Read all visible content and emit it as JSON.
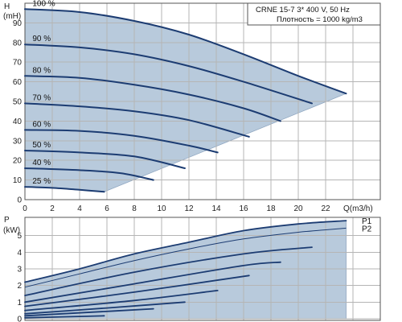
{
  "chart_data": [
    {
      "type": "line",
      "ylabel_unit": "(mH)",
      "ylabel_symbol": "H",
      "xlabel": "Q(m3/h)",
      "xlim": [
        0,
        26
      ],
      "ylim": [
        0,
        100
      ],
      "x_ticks": [
        0,
        2,
        4,
        6,
        8,
        10,
        12,
        14,
        16,
        18,
        20,
        22
      ],
      "y_ticks": [
        0,
        10,
        20,
        30,
        40,
        50,
        60,
        70,
        80,
        90
      ],
      "info_line1": "CRNE 15-7    3* 400 V, 50 Hz",
      "info_line2": "Плотность = 1000 kg/m3",
      "series": [
        {
          "name": "100 %",
          "x": [
            0,
            4,
            8,
            12,
            16,
            20,
            23.5
          ],
          "y": [
            97,
            95.5,
            91,
            84,
            74,
            63,
            54
          ]
        },
        {
          "name": "90 %",
          "x": [
            0,
            4,
            8,
            12,
            16,
            21
          ],
          "y": [
            79,
            77.5,
            74,
            68,
            60,
            49
          ]
        },
        {
          "name": "80 %",
          "x": [
            0,
            4,
            8,
            12,
            16,
            18.7
          ],
          "y": [
            63,
            62,
            58.5,
            53.5,
            46.5,
            40
          ]
        },
        {
          "name": "70 %",
          "x": [
            0,
            4,
            8,
            12,
            16.4
          ],
          "y": [
            49,
            47.5,
            45,
            40.5,
            32
          ]
        },
        {
          "name": "60 %",
          "x": [
            0,
            4,
            8,
            12,
            14.1
          ],
          "y": [
            35.5,
            35,
            32.5,
            27.5,
            24
          ]
        },
        {
          "name": "50 %",
          "x": [
            0,
            4,
            8,
            11.7
          ],
          "y": [
            25,
            24,
            22,
            16
          ]
        },
        {
          "name": "40 %",
          "x": [
            0,
            4,
            7,
            9.4
          ],
          "y": [
            16,
            15,
            13.5,
            10
          ]
        },
        {
          "name": "25 %",
          "x": [
            0,
            2,
            4,
            5.8
          ],
          "y": [
            6.5,
            6,
            5,
            4
          ]
        }
      ]
    },
    {
      "type": "line",
      "ylabel_unit": "(kW)",
      "ylabel_symbol": "P",
      "xlim": [
        0,
        26
      ],
      "ylim": [
        0,
        6
      ],
      "y_ticks": [
        0,
        1,
        2,
        3,
        4,
        5
      ],
      "series": [
        {
          "name": "P1",
          "x": [
            0,
            4,
            8,
            12,
            16,
            20,
            23.5
          ],
          "y": [
            2.2,
            3.0,
            3.9,
            4.6,
            5.3,
            5.7,
            5.9
          ]
        },
        {
          "name": "P2",
          "x": [
            0,
            4,
            8,
            12,
            16,
            20,
            23.5
          ],
          "y": [
            1.9,
            2.7,
            3.5,
            4.2,
            4.8,
            5.2,
            5.45
          ]
        }
      ],
      "speed_curves": [
        {
          "x": [
            0,
            8,
            16,
            21
          ],
          "y": [
            1.4,
            2.8,
            3.9,
            4.3
          ]
        },
        {
          "x": [
            0,
            8,
            16,
            18.7
          ],
          "y": [
            1.0,
            2.1,
            3.2,
            3.4
          ]
        },
        {
          "x": [
            0,
            8,
            16.4
          ],
          "y": [
            0.75,
            1.6,
            2.6
          ]
        },
        {
          "x": [
            0,
            8,
            14.1
          ],
          "y": [
            0.5,
            1.1,
            1.7
          ]
        },
        {
          "x": [
            0,
            6,
            11.7
          ],
          "y": [
            0.3,
            0.65,
            1.0
          ]
        },
        {
          "x": [
            0,
            5,
            9.4
          ],
          "y": [
            0.18,
            0.4,
            0.6
          ]
        },
        {
          "x": [
            0,
            3,
            5.8
          ],
          "y": [
            0.06,
            0.12,
            0.18
          ]
        }
      ]
    }
  ]
}
